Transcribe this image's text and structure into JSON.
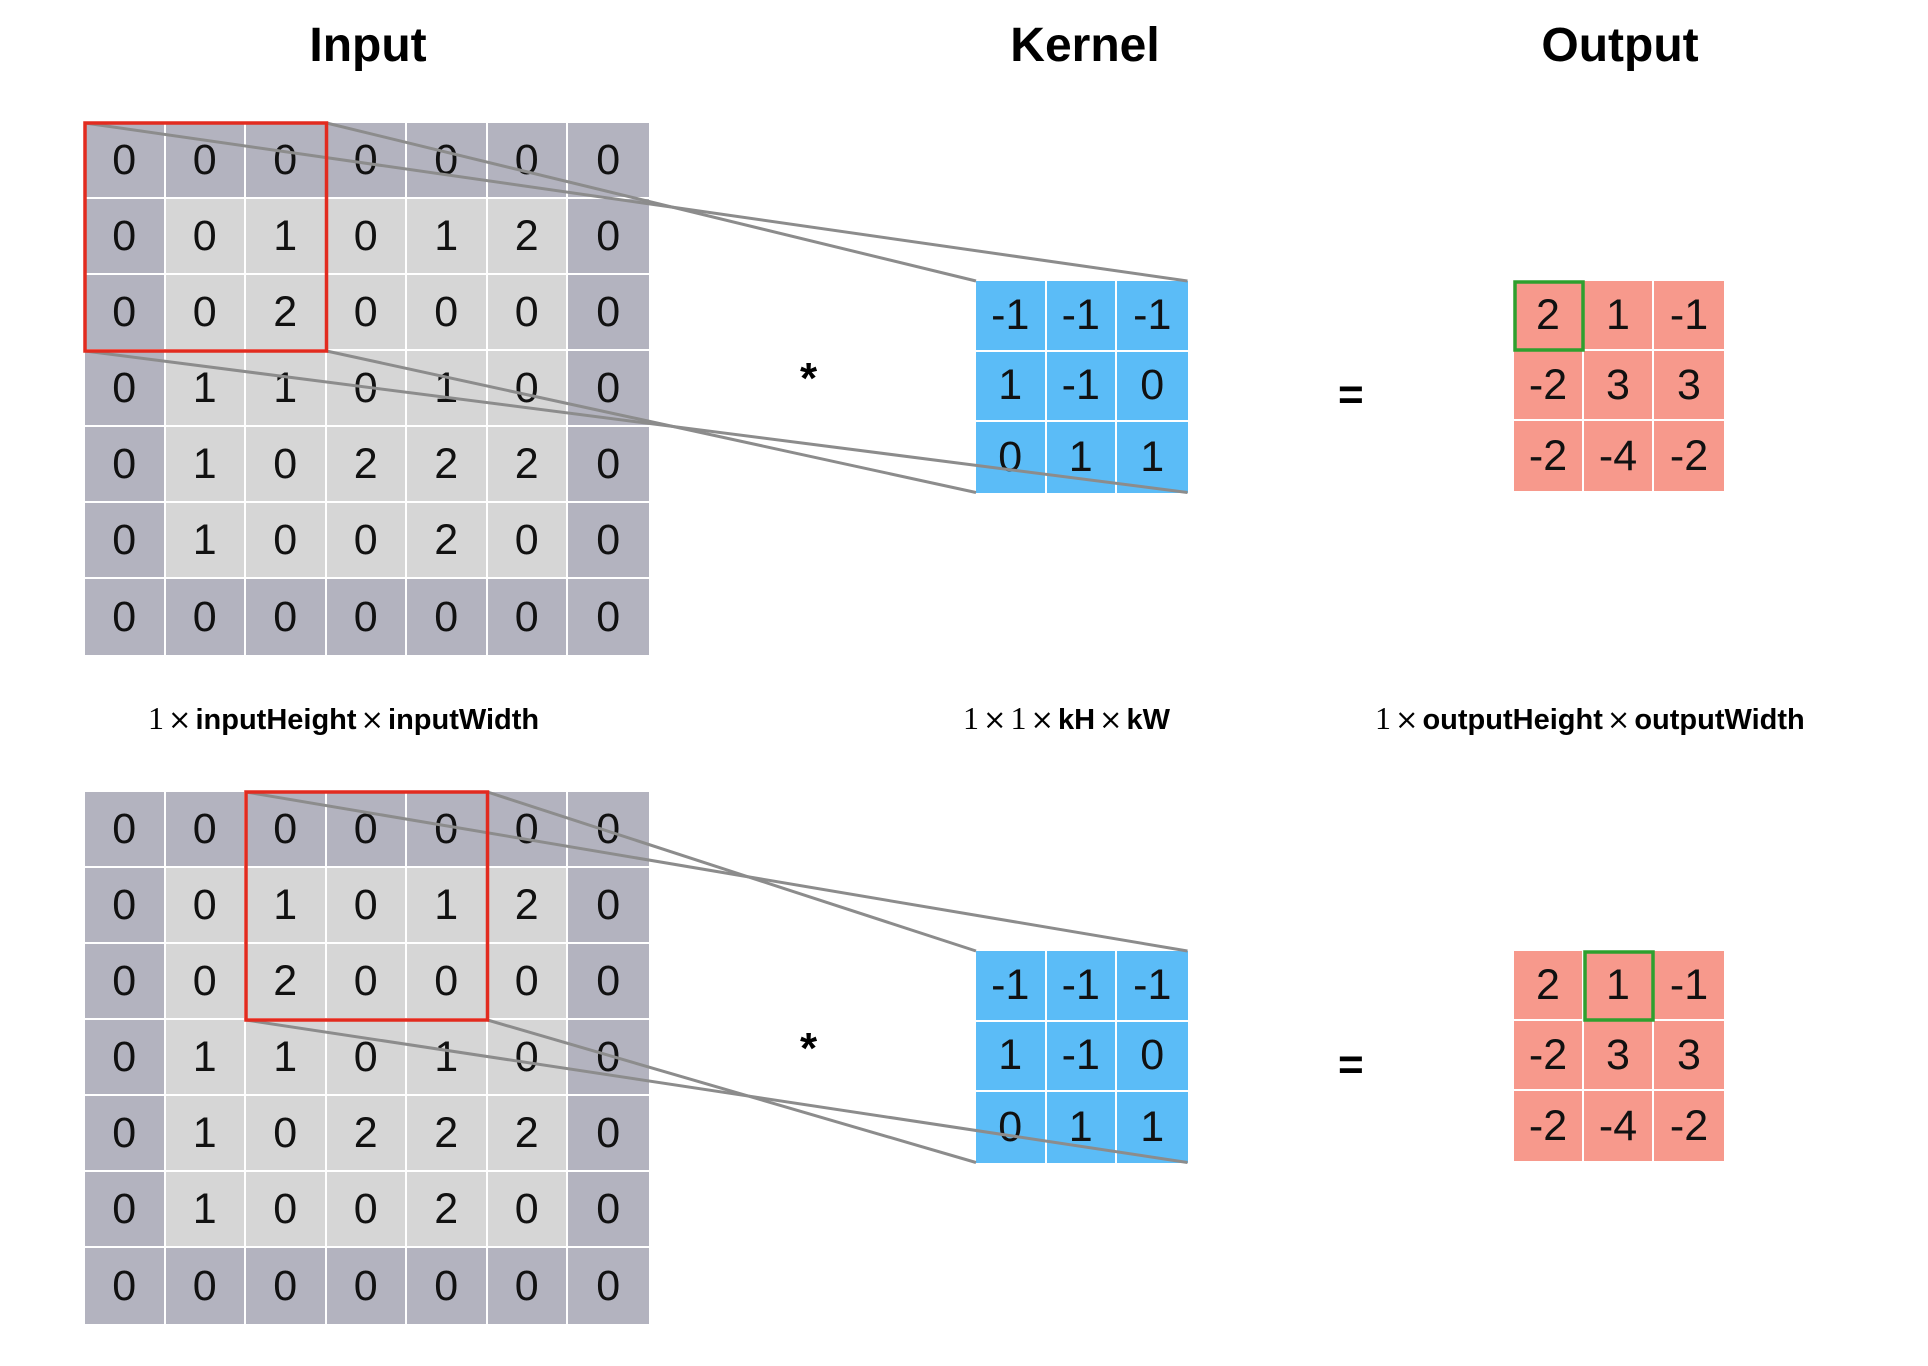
{
  "titles": {
    "input": "Input",
    "kernel": "Kernel",
    "output": "Output"
  },
  "dims": {
    "input": {
      "one": "1",
      "times": "×",
      "h": "inputHeight",
      "w": "inputWidth"
    },
    "kernel": {
      "one_a": "1",
      "one_b": "1",
      "times": "×",
      "h": "kH",
      "w": "kW"
    },
    "output": {
      "one": "1",
      "times": "×",
      "h": "outputHeight",
      "w": "outputWidth"
    }
  },
  "operators": {
    "convolve": "*",
    "equals": "="
  },
  "input_matrix": [
    [
      0,
      0,
      0,
      0,
      0,
      0,
      0
    ],
    [
      0,
      0,
      1,
      0,
      1,
      2,
      0
    ],
    [
      0,
      0,
      2,
      0,
      0,
      0,
      0
    ],
    [
      0,
      1,
      1,
      0,
      1,
      0,
      0
    ],
    [
      0,
      1,
      0,
      2,
      2,
      2,
      0
    ],
    [
      0,
      1,
      0,
      0,
      2,
      0,
      0
    ],
    [
      0,
      0,
      0,
      0,
      0,
      0,
      0
    ]
  ],
  "kernel_matrix": [
    [
      -1,
      -1,
      -1
    ],
    [
      1,
      -1,
      0
    ],
    [
      0,
      1,
      1
    ]
  ],
  "output_matrix": [
    [
      2,
      1,
      -1
    ],
    [
      -2,
      3,
      3
    ],
    [
      -2,
      -4,
      -2
    ]
  ],
  "steps": [
    {
      "window_row": 0,
      "window_col": 0,
      "output_row": 0,
      "output_col": 0
    },
    {
      "window_row": 0,
      "window_col": 2,
      "output_row": 0,
      "output_col": 1
    }
  ],
  "colors": {
    "padding_cell": "#b3b3bf",
    "inner_cell": "#d6d6d6",
    "kernel_cell": "#5bbcf7",
    "output_cell": "#f7998c",
    "window_border": "#e22b1f",
    "output_highlight": "#2ea02e",
    "projection_line": "#8c8c8c",
    "cell_gap": "#ffffff"
  }
}
